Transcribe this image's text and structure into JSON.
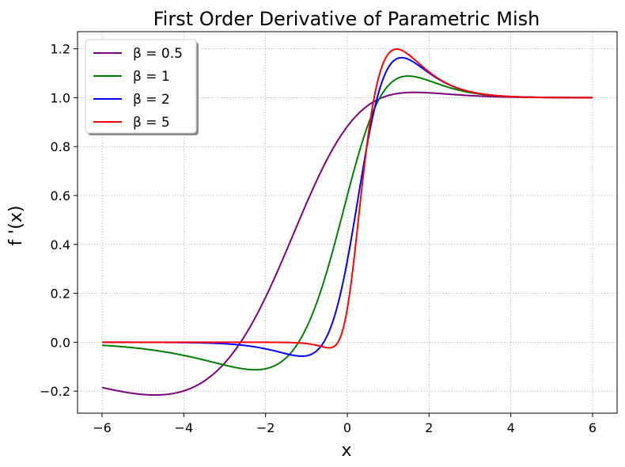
{
  "chart_data": {
    "type": "line",
    "title": "First Order Derivative of Parametric Mish",
    "xlabel": "x",
    "ylabel": "f '(x)",
    "xlim": [
      -6.6,
      6.6
    ],
    "ylim": [
      -0.29,
      1.27
    ],
    "xticks": [
      -6,
      -4,
      -2,
      0,
      2,
      4,
      6
    ],
    "xtick_labels": [
      "−6",
      "−4",
      "−2",
      "0",
      "2",
      "4",
      "6"
    ],
    "yticks": [
      -0.2,
      0.0,
      0.2,
      0.4,
      0.6,
      0.8,
      1.0,
      1.2
    ],
    "ytick_labels": [
      "−0.2",
      "0.0",
      "0.2",
      "0.4",
      "0.6",
      "0.8",
      "1.0",
      "1.2"
    ],
    "grid": true,
    "legend_position": "top-left",
    "x_range": [
      -6,
      6
    ],
    "series": [
      {
        "name": "β = 0.5",
        "beta": 0.5,
        "color": "#800080"
      },
      {
        "name": "β = 1",
        "beta": 1,
        "color": "#008000"
      },
      {
        "name": "β = 2",
        "beta": 2,
        "color": "#0000ff"
      },
      {
        "name": "β = 5",
        "beta": 5,
        "color": "#ff0000"
      }
    ]
  }
}
